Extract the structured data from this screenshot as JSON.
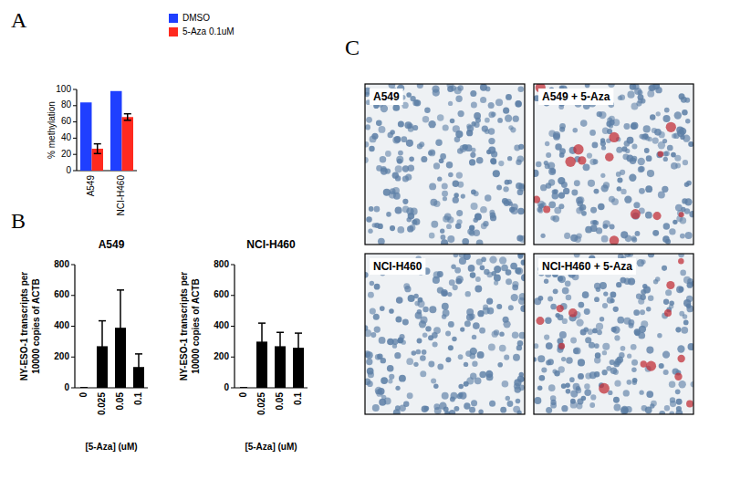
{
  "panel_labels": [
    "A",
    "B",
    "C"
  ],
  "chart_data": [
    {
      "type": "bar",
      "y_label": "% methylation",
      "categories": [
        "A549",
        "NCI-H460"
      ],
      "series": [
        {
          "name": "DMSO",
          "color": "#1f3fff",
          "values": [
            84,
            98
          ]
        },
        {
          "name": "5-Aza 0.1uM",
          "color": "#ff2a1f",
          "values": [
            27,
            66
          ],
          "errors": [
            6,
            4
          ]
        }
      ],
      "ylim": [
        0,
        100
      ],
      "yticks": [
        0,
        20,
        40,
        60,
        80,
        100
      ],
      "legend": "upper right"
    },
    {
      "type": "bar",
      "title": "A549",
      "y_label": "NY-ESO-1 transcripts per\n10000 copies of ACTB",
      "x_label": "[5-Aza] (uM)",
      "categories": [
        "0",
        "0.025",
        "0.05",
        "0.1"
      ],
      "values": [
        0,
        270,
        390,
        135
      ],
      "errors": [
        0,
        165,
        245,
        85
      ],
      "color": "#000000",
      "ylim": [
        0,
        800
      ],
      "yticks": [
        0,
        200,
        400,
        600,
        800
      ]
    },
    {
      "type": "bar",
      "title": "NCI-H460",
      "y_label": "NY-ESO-1 transcripts per\n10000 copies of ACTB",
      "x_label": "[5-Aza] (uM)",
      "categories": [
        "0",
        "0.025",
        "0.05",
        "0.1"
      ],
      "values": [
        0,
        300,
        270,
        260
      ],
      "errors": [
        0,
        120,
        90,
        95
      ],
      "color": "#000000",
      "ylim": [
        0,
        800
      ],
      "yticks": [
        0,
        200,
        400,
        600,
        800
      ]
    }
  ],
  "image_panels": [
    {
      "label": "A549"
    },
    {
      "label": "A549 + 5-Aza"
    },
    {
      "label": "NCI-H460"
    },
    {
      "label": "NCI-H460 + 5-Aza"
    }
  ]
}
